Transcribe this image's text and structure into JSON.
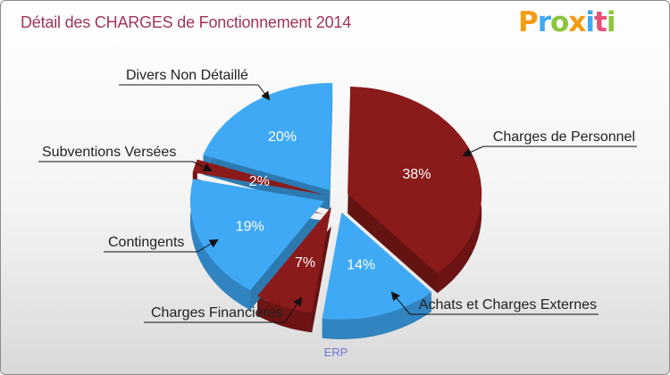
{
  "chart_data": {
    "type": "pie",
    "title": "Détail des CHARGES de Fonctionnement 2014",
    "footer": "ERP",
    "slices": [
      {
        "label": "Charges de Personnel",
        "value": 38,
        "display": "38%",
        "color": "#8b1a1a"
      },
      {
        "label": "Achats et Charges Externes",
        "value": 14,
        "display": "14%",
        "color": "#3fa9f5"
      },
      {
        "label": "Charges Financières",
        "value": 7,
        "display": "7%",
        "color": "#8b1a1a"
      },
      {
        "label": "Contingents",
        "value": 19,
        "display": "19%",
        "color": "#3fa9f5"
      },
      {
        "label": "Subventions Versées",
        "value": 2,
        "display": "2%",
        "color": "#8b1a1a"
      },
      {
        "label": "Divers Non Détaillé",
        "value": 20,
        "display": "20%",
        "color": "#3fa9f5"
      }
    ]
  },
  "logo": {
    "text": "Proxiti",
    "letters": [
      {
        "ch": "P",
        "color": "#f39c12"
      },
      {
        "ch": "r",
        "color": "#3fa9f5"
      },
      {
        "ch": "o",
        "color": "#8cc63f"
      },
      {
        "ch": "x",
        "color": "#f39c12"
      },
      {
        "ch": "i",
        "color": "#3fa9f5"
      },
      {
        "ch": "t",
        "color": "#e94e77"
      },
      {
        "ch": "i",
        "color": "#8cc63f"
      }
    ]
  }
}
